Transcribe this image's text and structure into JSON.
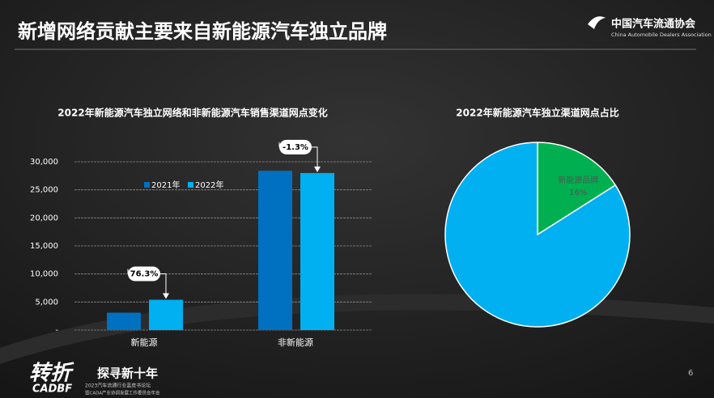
{
  "header": {
    "title": "新增网络贡献主要来自新能源汽车独立品牌",
    "org_cn": "中国汽车流通协会",
    "org_en": "China Automobile Dealers Association"
  },
  "chart_data": [
    {
      "type": "bar",
      "title": "2022年新能源汽车独立网络和非新能源汽车销售渠道网点变化",
      "categories": [
        "新能源",
        "非新能源"
      ],
      "series": [
        {
          "name": "2021年",
          "color": "#0070c0",
          "values": [
            3100,
            28400
          ]
        },
        {
          "name": "2022年",
          "color": "#00b0f0",
          "values": [
            5400,
            28000
          ]
        }
      ],
      "annotations": [
        "76.3%",
        "-1.3%"
      ],
      "ylim": [
        0,
        30000
      ],
      "yticks": [
        {
          "value": 0,
          "label": "-"
        },
        {
          "value": 5000,
          "label": "5,000"
        },
        {
          "value": 10000,
          "label": "10,000"
        },
        {
          "value": 15000,
          "label": "15,000"
        },
        {
          "value": 20000,
          "label": "20,000"
        },
        {
          "value": 25000,
          "label": "25,000"
        },
        {
          "value": 30000,
          "label": "30,000"
        }
      ],
      "grid": true
    },
    {
      "type": "pie",
      "title": "2022年新能源汽车独立渠道网点占比",
      "categories": [
        "新能源品牌",
        null
      ],
      "values": [
        16,
        84
      ],
      "value_labels": [
        "16%",
        null
      ],
      "colors": [
        "#00b050",
        "#00b0f0"
      ]
    }
  ],
  "footer": {
    "page": "6",
    "brand": "转折",
    "brand_en": "CADBF",
    "slogan": "探寻新十年",
    "forum": "2023汽车流通行业蓝皮书论坛",
    "sub": "暨CADA产业协调发展工作委员会年会"
  }
}
